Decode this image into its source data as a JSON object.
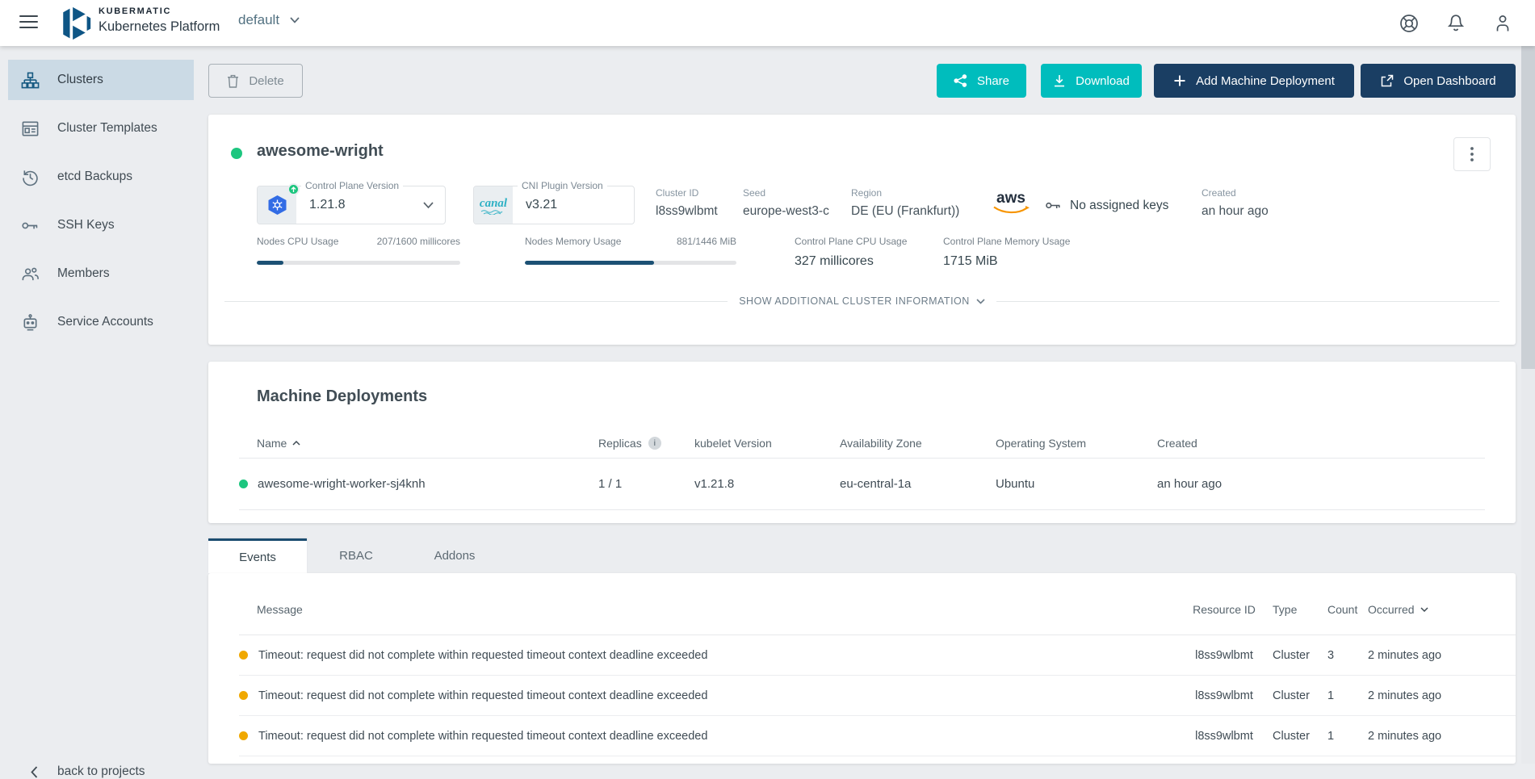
{
  "colors": {
    "teal": "#00bdbd",
    "navy": "#1a3e63",
    "green": "#1dc67f",
    "amber": "#f0a800",
    "progress_fill": "#1c5174",
    "active_item_bg": "#cbdae5"
  },
  "header": {
    "brand_name": "KUBERMATIC",
    "brand_product": "Kubernetes Platform",
    "project": "default"
  },
  "sidebar": {
    "items": [
      {
        "label": "Clusters",
        "icon": "clusters-icon",
        "active": true
      },
      {
        "label": "Cluster Templates",
        "icon": "cluster-templates-icon",
        "active": false
      },
      {
        "label": "etcd Backups",
        "icon": "etcd-backups-icon",
        "active": false
      },
      {
        "label": "SSH Keys",
        "icon": "ssh-keys-icon",
        "active": false
      },
      {
        "label": "Members",
        "icon": "members-icon",
        "active": false
      },
      {
        "label": "Service Accounts",
        "icon": "service-accounts-icon",
        "active": false
      }
    ],
    "back_link": "back to projects"
  },
  "toolbar": {
    "delete": "Delete",
    "share": "Share",
    "download": "Download",
    "add_machine_deployment": "Add Machine Deployment",
    "open_dashboard": "Open Dashboard"
  },
  "cluster": {
    "name": "awesome-wright",
    "health": "running",
    "control_plane_version": {
      "label": "Control Plane Version",
      "value": "1.21.8"
    },
    "cni": {
      "label": "CNI Plugin Version",
      "value": "v3.21",
      "logo": "canal"
    },
    "cluster_id": {
      "label": "Cluster ID",
      "value": "l8ss9wlbmt"
    },
    "seed": {
      "label": "Seed",
      "value": "europe-west3-c"
    },
    "region": {
      "label": "Region",
      "value": "DE (EU (Frankfurt))"
    },
    "provider": "aws",
    "ssh_keys": "No assigned keys",
    "created": {
      "label": "Created",
      "value": "an hour ago"
    },
    "usage": {
      "nodes_cpu": {
        "label": "Nodes CPU Usage",
        "value": "207/1600 millicores",
        "percent": 13
      },
      "nodes_memory": {
        "label": "Nodes Memory Usage",
        "value": "881/1446 MiB",
        "percent": 61
      },
      "control_plane_cpu": {
        "label": "Control Plane CPU Usage",
        "value": "327 millicores"
      },
      "control_plane_memory": {
        "label": "Control Plane Memory Usage",
        "value": "1715 MiB"
      }
    },
    "show_more": "SHOW ADDITIONAL CLUSTER INFORMATION"
  },
  "machine_deployments": {
    "title": "Machine Deployments",
    "columns": {
      "name": "Name",
      "replicas": "Replicas",
      "kubelet": "kubelet Version",
      "zone": "Availability Zone",
      "os": "Operating System",
      "created": "Created"
    },
    "rows": [
      {
        "status": "green",
        "name": "awesome-wright-worker-sj4knh",
        "replicas": "1 / 1",
        "kubelet": "v1.21.8",
        "zone": "eu-central-1a",
        "os": "Ubuntu",
        "created": "an hour ago"
      }
    ]
  },
  "tabs": [
    {
      "label": "Events",
      "active": true
    },
    {
      "label": "RBAC",
      "active": false
    },
    {
      "label": "Addons",
      "active": false
    }
  ],
  "events": {
    "columns": {
      "message": "Message",
      "resource_id": "Resource ID",
      "type": "Type",
      "count": "Count",
      "occurred": "Occurred"
    },
    "rows": [
      {
        "status": "warning",
        "message": "Timeout: request did not complete within requested timeout context deadline exceeded",
        "resource_id": "l8ss9wlbmt",
        "type": "Cluster",
        "count": "3",
        "occurred": "2 minutes ago"
      },
      {
        "status": "warning",
        "message": "Timeout: request did not complete within requested timeout context deadline exceeded",
        "resource_id": "l8ss9wlbmt",
        "type": "Cluster",
        "count": "1",
        "occurred": "2 minutes ago"
      },
      {
        "status": "warning",
        "message": "Timeout: request did not complete within requested timeout context deadline exceeded",
        "resource_id": "l8ss9wlbmt",
        "type": "Cluster",
        "count": "1",
        "occurred": "2 minutes ago"
      }
    ]
  }
}
